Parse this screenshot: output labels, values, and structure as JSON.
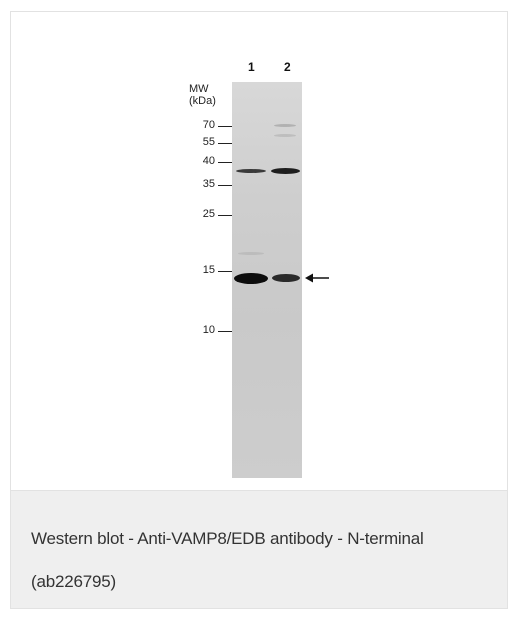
{
  "figure": {
    "lanes": [
      "1",
      "2"
    ],
    "mw_header": [
      "MW",
      "(kDa)"
    ],
    "markers": [
      "70",
      "55",
      "40",
      "35",
      "25",
      "15",
      "10"
    ]
  },
  "caption": {
    "text": "Western blot - Anti-VAMP8/EDB antibody - N-terminal (ab226795)"
  },
  "colors": {
    "caption_bg": "#efefef",
    "border": "#e2e2e2",
    "band": "#111111"
  }
}
